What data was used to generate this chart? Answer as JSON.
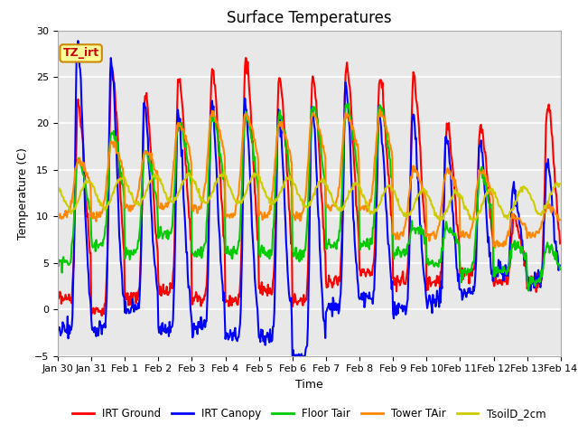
{
  "title": "Surface Temperatures",
  "xlabel": "Time",
  "ylabel": "Temperature (C)",
  "ylim": [
    -5,
    30
  ],
  "plot_background": "#e8e8e8",
  "series": {
    "IRT Ground": {
      "color": "#ff0000",
      "linewidth": 1.5
    },
    "IRT Canopy": {
      "color": "#0000ff",
      "linewidth": 1.5
    },
    "Floor Tair": {
      "color": "#00cc00",
      "linewidth": 1.5
    },
    "Tower TAir": {
      "color": "#ff8800",
      "linewidth": 1.5
    },
    "TsoilD_2cm": {
      "color": "#cccc00",
      "linewidth": 1.5
    }
  },
  "xtick_labels": [
    "Jan 30",
    "Jan 31",
    "Feb 1",
    "Feb 2",
    "Feb 3",
    "Feb 4",
    "Feb 5",
    "Feb 6",
    "Feb 7",
    "Feb 8",
    "Feb 9",
    "Feb 10",
    "Feb 11",
    "Feb 12",
    "Feb 13",
    "Feb 14"
  ],
  "tag_text": "TZ_irt",
  "tag_bg": "#ffff99",
  "tag_border": "#cc8800",
  "title_fontsize": 12,
  "axis_fontsize": 9,
  "tick_fontsize": 8
}
